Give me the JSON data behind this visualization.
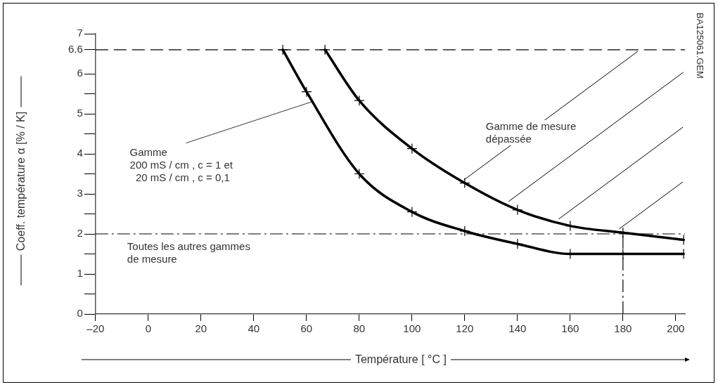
{
  "chart_data": {
    "type": "line",
    "xlabel": "Température  [ °C ]",
    "ylabel": "Coeff. température α [% / K]",
    "xlim": [
      -20,
      203.5
    ],
    "ylim": [
      0,
      7
    ],
    "xticks": [
      {
        "value": -20,
        "label": "–20"
      },
      0,
      20,
      40,
      60,
      80,
      100,
      120,
      140,
      160,
      180,
      200
    ],
    "yticks": [
      0,
      {
        "value": 0.5,
        "label": null
      },
      1,
      {
        "value": 1.5,
        "label": null
      },
      2,
      {
        "value": 2.5,
        "label": null
      },
      3,
      {
        "value": 3.5,
        "label": null
      },
      4,
      {
        "value": 4.5,
        "label": null
      },
      5,
      {
        "value": 5.5,
        "label": null
      },
      6,
      6.6,
      7
    ],
    "series": [
      {
        "color": "#000000",
        "x": [
          51,
          60,
          80,
          100,
          120,
          140,
          160,
          180,
          203
        ],
        "values": [
          6.6,
          5.55,
          3.5,
          2.55,
          2.07,
          1.75,
          1.5,
          1.5,
          1.5
        ]
      },
      {
        "color": "#000000",
        "x": [
          67,
          80,
          100,
          120,
          140,
          160,
          180,
          203
        ],
        "values": [
          6.6,
          5.33,
          4.13,
          3.27,
          2.6,
          2.2,
          2.03,
          1.85
        ]
      }
    ],
    "marker": "cross",
    "line_style": "solid",
    "grid": false,
    "legend": false,
    "ref_lines": [
      {
        "axis": "y",
        "value": 6.6,
        "line_style": "dashed",
        "color": "#000000"
      },
      {
        "axis": "y",
        "value": 2,
        "line_style": "dashdot",
        "color": "#000000"
      },
      {
        "axis": "x",
        "value": 180,
        "line_style": "dashdot",
        "color": "#000000"
      }
    ],
    "annotations": [
      {
        "text": "Gamme\n200 mS / cm , c = 1 et\n  20 mS / cm , c = 0,1",
        "x": 62,
        "y": 5.3
      },
      "Toutes les autres gammes\nde mesure",
      "Gamme de mesure\ndépassée",
      "BA125061.GEM"
    ]
  }
}
